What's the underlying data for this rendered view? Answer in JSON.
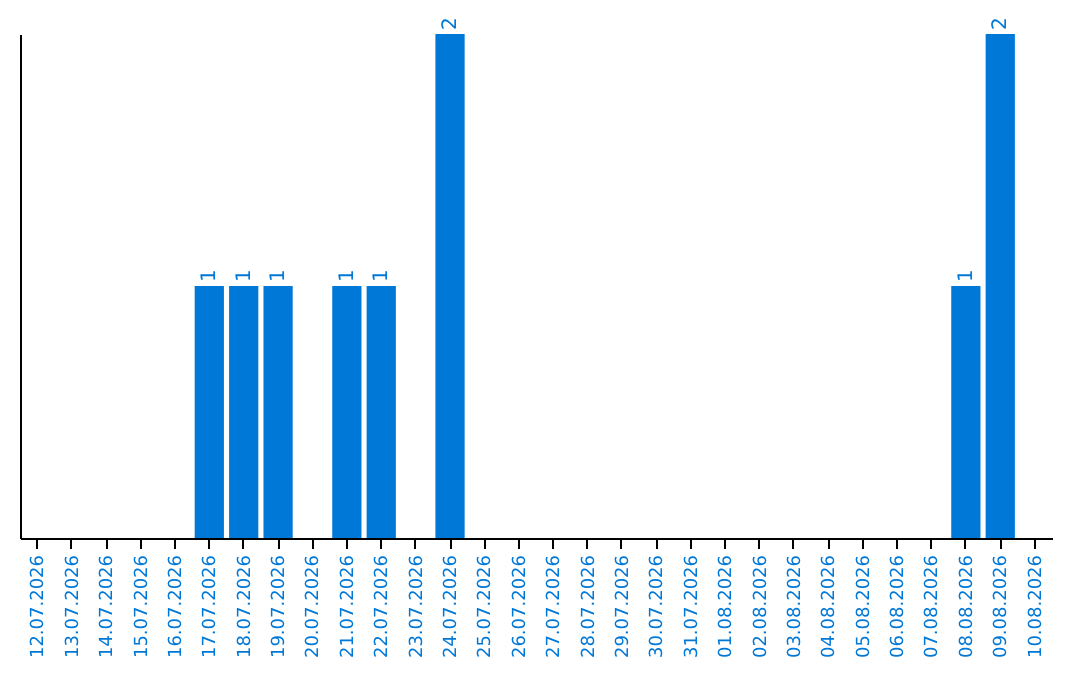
{
  "chart_data": {
    "type": "bar",
    "categories": [
      "12.07.2026",
      "13.07.2026",
      "14.07.2026",
      "15.07.2026",
      "16.07.2026",
      "17.07.2026",
      "18.07.2026",
      "19.07.2026",
      "20.07.2026",
      "21.07.2026",
      "22.07.2026",
      "23.07.2026",
      "24.07.2026",
      "25.07.2026",
      "26.07.2026",
      "27.07.2026",
      "28.07.2026",
      "29.07.2026",
      "30.07.2026",
      "31.07.2026",
      "01.08.2026",
      "02.08.2026",
      "03.08.2026",
      "04.08.2026",
      "05.08.2026",
      "06.08.2026",
      "07.08.2026",
      "08.08.2026",
      "09.08.2026",
      "10.08.2026"
    ],
    "values": [
      0,
      0,
      0,
      0,
      0,
      1,
      1,
      1,
      0,
      1,
      1,
      0,
      2,
      0,
      0,
      0,
      0,
      0,
      0,
      0,
      0,
      0,
      0,
      0,
      0,
      0,
      0,
      1,
      2,
      0
    ],
    "value_labels": [
      null,
      null,
      null,
      null,
      null,
      "1",
      "1",
      "1",
      null,
      "1",
      "1",
      null,
      "2",
      null,
      null,
      null,
      null,
      null,
      null,
      null,
      null,
      null,
      null,
      null,
      null,
      null,
      null,
      "1",
      "2",
      null
    ],
    "color": "#0078d7",
    "tick_labels": "x",
    "grid": false
  }
}
